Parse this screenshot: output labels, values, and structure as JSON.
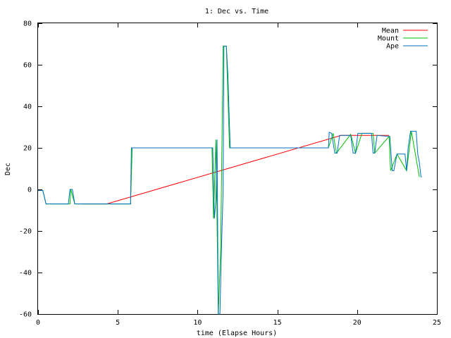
{
  "chart_data": {
    "type": "line",
    "title": "1: Dec vs. Time",
    "xlabel": "time (Elapse Hours)",
    "ylabel": "Dec",
    "xlim": [
      0,
      25
    ],
    "ylim": [
      -60,
      80
    ],
    "xticks": [
      0,
      5,
      10,
      15,
      20,
      25
    ],
    "yticks": [
      -60,
      -40,
      -20,
      0,
      20,
      40,
      60,
      80
    ],
    "grid": false,
    "legend_position": "top-right",
    "series": [
      {
        "name": "Mean",
        "color": "#ff0000",
        "points": [
          [
            2.8,
            -7
          ],
          [
            4.3,
            -7
          ],
          [
            19.0,
            26
          ],
          [
            19.6,
            26
          ],
          [
            21.0,
            26
          ],
          [
            22.0,
            26
          ]
        ]
      },
      {
        "name": "Mount",
        "color": "#00c000",
        "points": [
          [
            0,
            -0.5
          ],
          [
            0.3,
            -0.5
          ],
          [
            0.5,
            -7
          ],
          [
            2,
            -7
          ],
          [
            2.05,
            0
          ],
          [
            2.3,
            -7
          ],
          [
            5.8,
            -7
          ],
          [
            5.9,
            20
          ],
          [
            10.9,
            20
          ],
          [
            11.0,
            -14
          ],
          [
            11.15,
            24
          ],
          [
            11.3,
            -60
          ],
          [
            11.45,
            -28
          ],
          [
            11.6,
            69
          ],
          [
            11.8,
            69
          ],
          [
            12.0,
            20
          ],
          [
            18.2,
            20
          ],
          [
            18.5,
            27
          ],
          [
            18.7,
            17.5
          ],
          [
            19.6,
            26.5
          ],
          [
            19.9,
            17.5
          ],
          [
            20.3,
            27
          ],
          [
            21.0,
            27
          ],
          [
            21.1,
            17.5
          ],
          [
            22.0,
            25.5
          ],
          [
            22.1,
            9
          ],
          [
            22.5,
            17
          ],
          [
            23.1,
            9
          ],
          [
            23.4,
            28
          ],
          [
            23.9,
            6
          ]
        ]
      },
      {
        "name": "Ape",
        "color": "#0070c0",
        "points": [
          [
            0,
            -0.5
          ],
          [
            0.3,
            -0.5
          ],
          [
            0.5,
            -7
          ],
          [
            1.9,
            -7
          ],
          [
            2.0,
            0
          ],
          [
            2.15,
            0
          ],
          [
            2.3,
            -7
          ],
          [
            5.8,
            -7
          ],
          [
            5.85,
            20
          ],
          [
            10.95,
            20
          ],
          [
            11.05,
            -14
          ],
          [
            11.15,
            -5
          ],
          [
            11.22,
            24
          ],
          [
            11.3,
            -60
          ],
          [
            11.4,
            -60
          ],
          [
            11.5,
            -27
          ],
          [
            11.6,
            -1
          ],
          [
            11.65,
            69
          ],
          [
            11.8,
            69
          ],
          [
            11.9,
            55
          ],
          [
            12.0,
            30
          ],
          [
            12.05,
            20
          ],
          [
            18.2,
            20
          ],
          [
            18.25,
            27.5
          ],
          [
            18.4,
            27
          ],
          [
            18.6,
            17.5
          ],
          [
            18.75,
            17.5
          ],
          [
            18.9,
            26
          ],
          [
            19.6,
            26
          ],
          [
            19.75,
            17.5
          ],
          [
            19.9,
            17.5
          ],
          [
            20.05,
            27
          ],
          [
            20.9,
            27
          ],
          [
            21.0,
            17.5
          ],
          [
            21.1,
            17.5
          ],
          [
            21.25,
            26
          ],
          [
            22.05,
            25.5
          ],
          [
            22.2,
            9
          ],
          [
            22.3,
            9
          ],
          [
            22.5,
            17
          ],
          [
            23.0,
            17
          ],
          [
            23.1,
            9
          ],
          [
            23.2,
            20
          ],
          [
            23.35,
            28
          ],
          [
            23.7,
            28
          ],
          [
            23.8,
            17
          ],
          [
            23.9,
            13
          ],
          [
            24.0,
            6
          ],
          [
            24.05,
            6
          ]
        ]
      }
    ]
  }
}
